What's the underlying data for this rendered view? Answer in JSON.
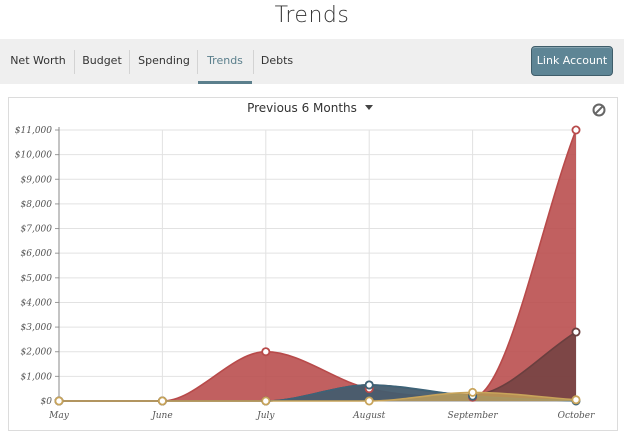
{
  "page": {
    "title": "Trends"
  },
  "nav": {
    "tabs": [
      {
        "label": "Net Worth",
        "active": false
      },
      {
        "label": "Budget",
        "active": false
      },
      {
        "label": "Spending",
        "active": false
      },
      {
        "label": "Trends",
        "active": true
      },
      {
        "label": "Debts",
        "active": false
      }
    ],
    "link_account_label": "Link Account"
  },
  "chart_header": {
    "range_label": "Previous 6 Months",
    "reset_icon": "circle-slash-icon"
  },
  "colors": {
    "red": "#b84a4a",
    "dark": "#6a3f3f",
    "blue": "#3d6378",
    "gold": "#c8a45a",
    "accent": "#5b7f8c"
  },
  "chart_data": {
    "type": "area",
    "categories": [
      "May",
      "June",
      "July",
      "August",
      "September",
      "October"
    ],
    "y_ticks": [
      "$0",
      "$1,000",
      "$2,000",
      "$3,000",
      "$4,000",
      "$5,000",
      "$6,000",
      "$7,000",
      "$8,000",
      "$9,000",
      "$10,000",
      "$11,000"
    ],
    "ylim": [
      0,
      11000
    ],
    "grid": true,
    "series": [
      {
        "values": [
          0,
          0,
          2000,
          500,
          150,
          11000
        ],
        "color": "#b84a4a"
      },
      {
        "values": [
          0,
          0,
          0,
          650,
          250,
          2800
        ],
        "color": "#6a3f3f"
      },
      {
        "values": [
          0,
          0,
          0,
          650,
          200,
          0
        ],
        "color": "#3d6378"
      },
      {
        "values": [
          0,
          0,
          0,
          0,
          350,
          50
        ],
        "color": "#c8a45a"
      }
    ]
  }
}
